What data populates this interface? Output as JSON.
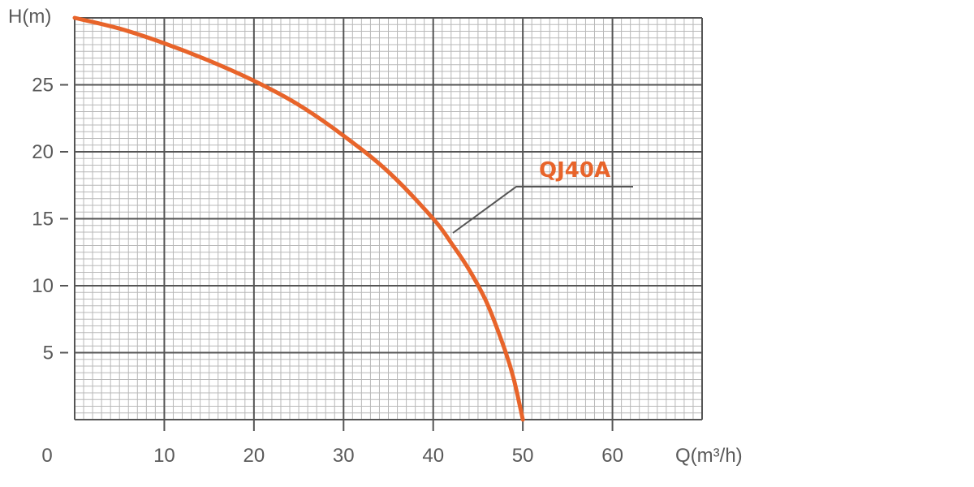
{
  "chart_data": {
    "type": "line",
    "ylabel": "H(m)",
    "xlabel": "Q(m³/h)",
    "xlim": [
      0,
      70
    ],
    "ylim": [
      0,
      30
    ],
    "x_ticks": [
      10,
      20,
      30,
      40,
      50,
      60
    ],
    "y_ticks": [
      5,
      10,
      15,
      20,
      25
    ],
    "origin_label": "0",
    "grid": true,
    "series": [
      {
        "name": "QJ40A",
        "color": "#e8642a",
        "x": [
          0,
          5,
          10,
          15,
          20,
          25,
          30,
          35,
          40,
          42,
          44,
          46,
          48,
          49,
          50
        ],
        "y": [
          30,
          29.2,
          28.1,
          26.8,
          25.3,
          23.5,
          21.2,
          18.5,
          15,
          13.2,
          11.2,
          8.7,
          5.2,
          3.0,
          0
        ]
      }
    ],
    "annotation": {
      "text": "QJ40A",
      "leader_color": "#555555"
    }
  }
}
